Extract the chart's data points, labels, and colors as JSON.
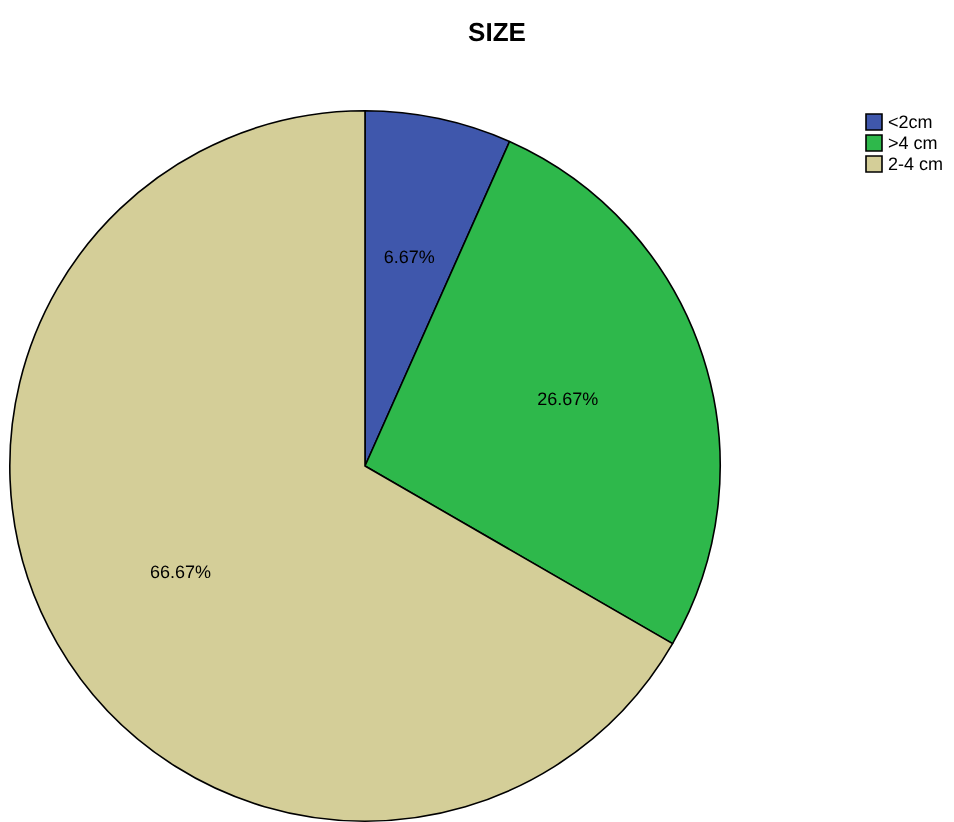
{
  "chart_data": {
    "type": "pie",
    "title": "SIZE",
    "categories": [
      "<2cm",
      ">4 cm",
      "2-4 cm"
    ],
    "values": [
      6.67,
      26.67,
      66.67
    ],
    "colors": [
      "#3f57ac",
      "#2eb84b",
      "#d4ce98"
    ],
    "value_labels": [
      "6.67%",
      "26.67%",
      "66.67%"
    ],
    "legend": "top right"
  }
}
